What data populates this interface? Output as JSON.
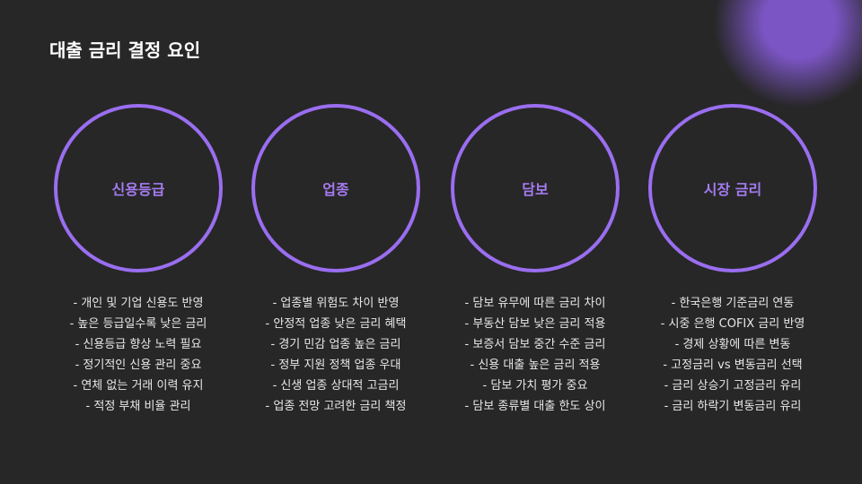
{
  "title": "대출 금리 결정 요인",
  "colors": {
    "background": "#272727",
    "accent": "#9a6ef0"
  },
  "factors": [
    {
      "label": "신용등급",
      "items": [
        "- 개인 및 기업 신용도 반영",
        "- 높은 등급일수록 낮은 금리",
        "- 신용등급 향상 노력 필요",
        "- 정기적인 신용 관리 중요",
        "- 연체 없는 거래 이력 유지",
        "- 적정 부채 비율 관리"
      ]
    },
    {
      "label": "업종",
      "items": [
        "- 업종별 위험도 차이 반영",
        "- 안정적 업종 낮은 금리 혜택",
        "- 경기 민감 업종 높은 금리",
        "- 정부 지원 정책 업종 우대",
        "- 신생 업종 상대적 고금리",
        "- 업종 전망 고려한 금리 책정"
      ]
    },
    {
      "label": "담보",
      "items": [
        "- 담보 유무에 따른 금리 차이",
        "- 부동산 담보 낮은 금리 적용",
        "- 보증서 담보 중간 수준 금리",
        "- 신용 대출 높은 금리 적용",
        "- 담보 가치 평가 중요",
        "- 담보 종류별 대출 한도 상이"
      ]
    },
    {
      "label": "시장 금리",
      "items": [
        "- 한국은행 기준금리 연동",
        "- 시중 은행 COFIX 금리 반영",
        "- 경제 상황에 따른 변동",
        "- 고정금리 vs 변동금리 선택",
        "- 금리 상승기 고정금리 유리",
        "- 금리 하락기 변동금리 유리"
      ]
    }
  ]
}
